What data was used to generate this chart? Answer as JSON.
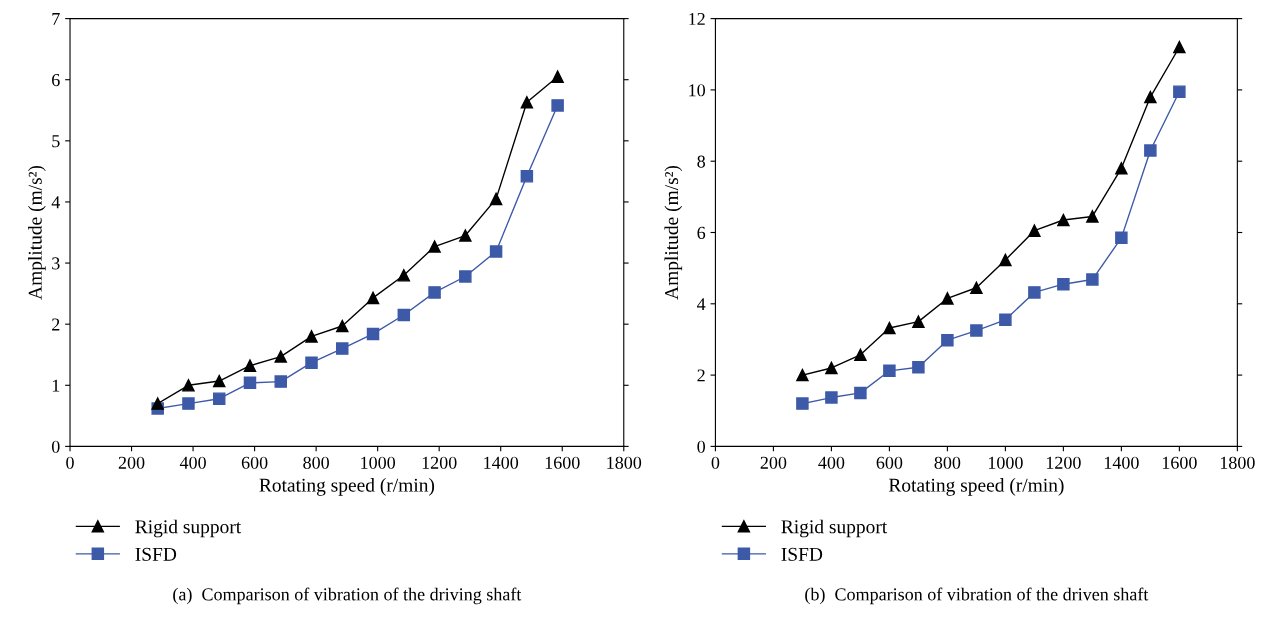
{
  "chart_data": [
    {
      "type": "line",
      "xlabel": "Rotating speed (r/min)",
      "ylabel": "Amplitude (m/s²)",
      "xlim": [
        0,
        1800
      ],
      "ylim": [
        0,
        7
      ],
      "xticks": [
        0,
        200,
        400,
        600,
        800,
        1000,
        1200,
        1400,
        1600,
        1800
      ],
      "yticks": [
        0,
        1,
        2,
        3,
        4,
        5,
        6,
        7
      ],
      "x": [
        285,
        385,
        485,
        585,
        685,
        785,
        885,
        985,
        1085,
        1185,
        1285,
        1385,
        1485,
        1585
      ],
      "legend": "bottom left",
      "grid": false,
      "series": [
        {
          "name": "Rigid support",
          "color": "#000000",
          "marker": "triangle",
          "values": [
            0.7,
            1.0,
            1.07,
            1.32,
            1.47,
            1.8,
            1.97,
            2.43,
            2.8,
            3.27,
            3.45,
            4.05,
            5.63,
            6.05
          ]
        },
        {
          "name": "ISFD",
          "color": "#3d5aa8",
          "marker": "square",
          "values": [
            0.62,
            0.7,
            0.78,
            1.04,
            1.06,
            1.37,
            1.6,
            1.84,
            2.15,
            2.52,
            2.78,
            3.19,
            4.42,
            5.58
          ]
        }
      ],
      "annotations": [
        "(a)  Comparison of vibration of the driving shaft"
      ]
    },
    {
      "type": "line",
      "xlabel": "Rotating speed (r/min)",
      "ylabel": "Amplitude (m/s²)",
      "xlim": [
        0,
        1800
      ],
      "ylim": [
        0,
        12
      ],
      "xticks": [
        0,
        200,
        400,
        600,
        800,
        1000,
        1200,
        1400,
        1600,
        1800
      ],
      "yticks": [
        0,
        2,
        4,
        6,
        8,
        10,
        12
      ],
      "x": [
        300,
        400,
        500,
        600,
        700,
        800,
        900,
        1000,
        1100,
        1200,
        1300,
        1400,
        1500,
        1600
      ],
      "legend": "bottom left",
      "grid": false,
      "series": [
        {
          "name": "Rigid support",
          "color": "#000000",
          "marker": "triangle",
          "values": [
            2.0,
            2.2,
            2.57,
            3.32,
            3.5,
            4.15,
            4.45,
            5.23,
            6.05,
            6.35,
            6.45,
            7.8,
            9.8,
            11.2
          ]
        },
        {
          "name": "ISFD",
          "color": "#3d5aa8",
          "marker": "square",
          "values": [
            1.2,
            1.37,
            1.5,
            2.12,
            2.22,
            2.98,
            3.25,
            3.55,
            4.32,
            4.55,
            4.68,
            5.85,
            8.3,
            9.95
          ]
        }
      ],
      "annotations": [
        "(b)  Comparison of vibration of the driven shaft"
      ]
    }
  ]
}
